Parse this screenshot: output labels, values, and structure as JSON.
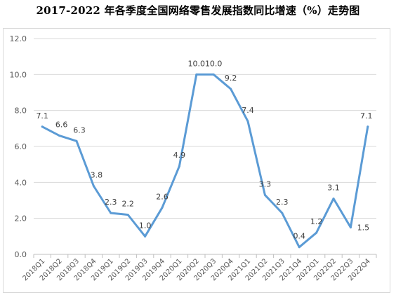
{
  "chart_data": {
    "type": "line",
    "title": "2017-2022 年各季度全国网络零售发展指数同比增速（%）走势图",
    "xlabel": "",
    "ylabel": "",
    "categories": [
      "2018Q1",
      "2018Q2",
      "2018Q3",
      "2018Q4",
      "2019Q1",
      "2019Q2",
      "2019Q3",
      "2019Q4",
      "2020Q1",
      "2020Q2",
      "2020Q3",
      "2020Q4",
      "2021Q1",
      "2021Q2",
      "2021Q3",
      "2021Q4",
      "2022Q1",
      "2022Q2",
      "2022Q3",
      "2022Q4"
    ],
    "series": [
      {
        "values": [
          7.1,
          6.6,
          6.3,
          3.8,
          2.3,
          2.2,
          1.0,
          2.6,
          4.9,
          10.0,
          10.0,
          9.2,
          7.4,
          3.3,
          2.3,
          0.4,
          1.2,
          3.1,
          1.5,
          7.1
        ],
        "labels": [
          "7.1",
          "6.6",
          "6.3",
          "3.8",
          "2.3",
          "2.2",
          "1.0",
          "2.6",
          "4.9",
          "10.0",
          "10.0",
          "9.2",
          "7.4",
          "3.3",
          "2.3",
          "0.4",
          "1.2",
          "3.1",
          "1.5",
          "7.1"
        ]
      }
    ],
    "y_ticks": [
      "0.0",
      "2.0",
      "4.0",
      "6.0",
      "8.0",
      "10.0",
      "12.0"
    ],
    "ylim": [
      0,
      12
    ],
    "grid": true,
    "legend": "none",
    "line_color": "#5b9bd5"
  }
}
